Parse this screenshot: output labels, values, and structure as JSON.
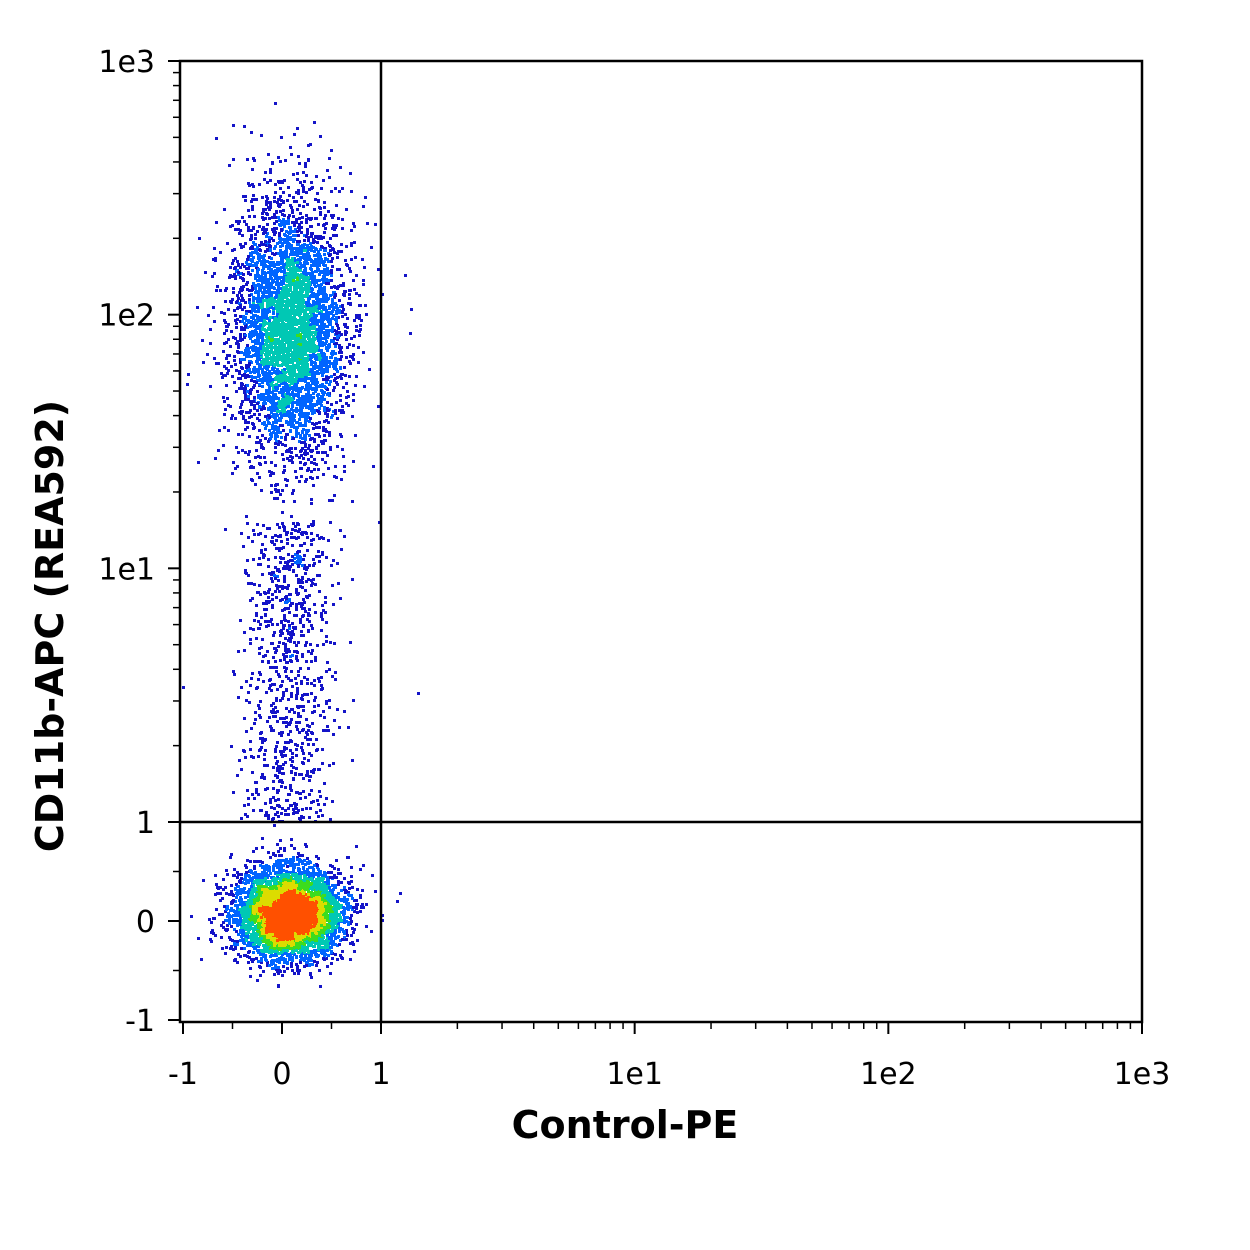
{
  "chart_data": {
    "type": "scatter",
    "style": "flow-cytometry density dot plot (biexponential axes)",
    "xlabel": "Control-PE",
    "ylabel": "CD11b-APC (REA592)",
    "x_scale": "biexponential",
    "y_scale": "biexponential",
    "xlim": [
      -1,
      1000
    ],
    "ylim": [
      -1,
      1000
    ],
    "x_ticks": [
      {
        "value": -1,
        "label": "-1"
      },
      {
        "value": 0,
        "label": "0"
      },
      {
        "value": 1,
        "label": "1"
      },
      {
        "value": 10,
        "label": "1e1"
      },
      {
        "value": 100,
        "label": "1e2"
      },
      {
        "value": 1000,
        "label": "1e3"
      }
    ],
    "y_ticks": [
      {
        "value": -1,
        "label": "-1"
      },
      {
        "value": 0,
        "label": "0"
      },
      {
        "value": 1,
        "label": "1"
      },
      {
        "value": 10,
        "label": "1e1"
      },
      {
        "value": 100,
        "label": "1e2"
      },
      {
        "value": 1000,
        "label": "1e3"
      }
    ],
    "quadrant_gate": {
      "x": 1,
      "y": 1
    },
    "populations": [
      {
        "x_center": 0.05,
        "y_center": 0.05,
        "x_spread": 0.18,
        "y_spread": 0.22,
        "peak_density": "high"
      },
      {
        "x_center": 0.05,
        "y_center": 90,
        "x_spread": 0.2,
        "y_spread_decades": 0.35,
        "peak_density": "medium"
      },
      {
        "x_center": 0.05,
        "y_range": [
          1,
          20
        ],
        "peak_density": "low"
      }
    ],
    "density_colors": [
      "#1414c8",
      "#0064ff",
      "#00c8b4",
      "#3cdc1e",
      "#dcdc00",
      "#ff5000"
    ],
    "grid": false,
    "legend": "none"
  }
}
